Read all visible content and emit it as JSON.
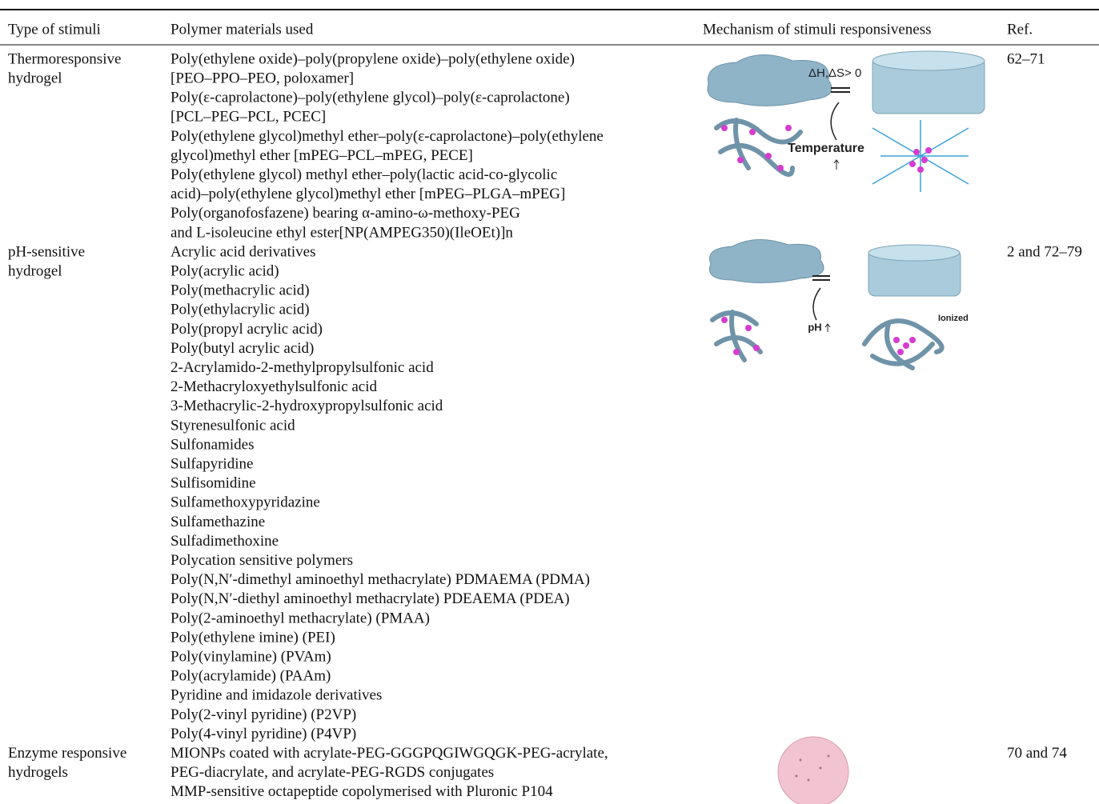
{
  "table": {
    "header": [
      "Type of stimuli",
      "Polymer materials used",
      "Mechanism of stimuli responsiveness",
      "Ref."
    ],
    "rows": [
      {
        "stimulus": [
          "Thermoresponsive",
          "hydrogel"
        ],
        "materials": [
          "Poly(ethylene oxide)–poly(propylene oxide)–poly(ethylene oxide)",
          "[PEO–PPO–PEO, poloxamer]",
          "Poly(ε-caprolactone)–poly(ethylene glycol)–poly(ε-caprolactone)",
          "[PCL–PEG–PCL, PCEC]",
          "Poly(ethylene glycol)methyl ether–poly(ε-caprolactone)–poly(ethylene",
          "glycol)methyl ether [mPEG–PCL–mPEG, PECE]",
          "Poly(ethylene glycol) methyl ether–poly(lactic acid-co-glycolic",
          "acid)–poly(ethylene glycol)methyl ether [mPEG–PLGA–mPEG]",
          "Poly(organofosfazene) bearing α-amino-ω-methoxy-PEG",
          "and L-isoleucine ethyl ester[NP(AMPEG350)(IleOEt)]n"
        ],
        "figure_labels": [
          "ΔH,ΔS> 0",
          "Temperature"
        ],
        "ref": "62–71"
      },
      {
        "stimulus": [
          "pH-sensitive",
          "hydrogel"
        ],
        "materials": [
          "Acrylic acid derivatives",
          "Poly(acrylic acid)",
          "Poly(methacrylic acid)",
          "Poly(ethylacrylic acid)",
          "Poly(propyl acrylic acid)",
          "Poly(butyl acrylic acid)",
          "2-Acrylamido-2-methylpropylsulfonic acid",
          "2-Methacryloxyethylsulfonic acid",
          "3-Methacrylic-2-hydroxypropylsulfonic acid",
          "Styrenesulfonic acid",
          "Sulfonamides",
          "Sulfapyridine",
          "Sulfisomidine",
          "Sulfamethoxypyridazine",
          "Sulfamethazine",
          "Sulfadimethoxine",
          "Polycation sensitive polymers",
          "Poly(N,N′-dimethyl aminoethyl methacrylate) PDMAEMA (PDMA)",
          "Poly(N,N′-diethyl aminoethyl methacrylate) PDEAEMA (PDEA)",
          "Poly(2-aminoethyl methacrylate) (PMAA)",
          "Poly(ethylene imine) (PEI)",
          "Poly(vinylamine) (PVAm)",
          "Poly(acrylamide) (PAAm)",
          "Pyridine and imidazole derivatives",
          "Poly(2-vinyl pyridine) (P2VP)",
          "Poly(4-vinyl pyridine) (P4VP)"
        ],
        "figure_labels": [
          "pH",
          "Ionized"
        ],
        "ref": "2 and 72–79"
      },
      {
        "stimulus": [
          "Enzyme responsive",
          "hydrogels"
        ],
        "materials": [
          "MIONPs coated with acrylate-PEG-GGGPQGIWGQGK-PEG-acrylate,",
          "PEG-diacrylate, and acrylate-PEG-RGDS conjugates",
          "MMP-sensitive octapeptide copolymerised with Pluronic P104"
        ],
        "figure_labels": [],
        "ref": "70 and 74"
      }
    ]
  }
}
